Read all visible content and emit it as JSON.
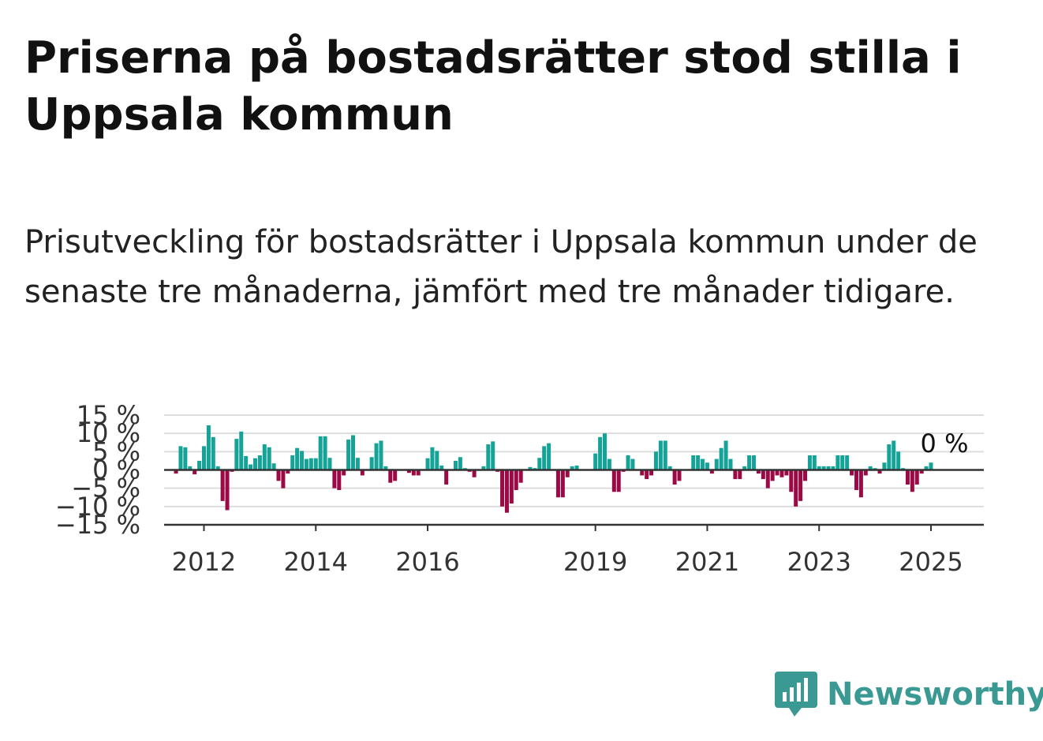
{
  "header": {
    "title": "Priserna på bostadsrätter stod stilla i Uppsala kommun",
    "subtitle": "Prisutveckling för bostadsrätter i Uppsala kommun under de senaste tre månaderna, jämfört med tre månader tidigare."
  },
  "branding": {
    "logo_text": "Newsworthy",
    "logo_icon": "bar-chart-speech-bubble-icon",
    "color": "#3a9a93"
  },
  "colors": {
    "positive": "#14a396",
    "negative": "#9b0a45",
    "grid": "#dddddd",
    "axis": "#333333"
  },
  "chart_data": {
    "type": "bar",
    "title": "",
    "xlabel": "",
    "ylabel": "",
    "ylim": [
      -15,
      15
    ],
    "yticks": [
      15,
      10,
      5,
      0,
      -5,
      -10,
      -15
    ],
    "ytick_labels": [
      "15 %",
      "10 %",
      "5 %",
      "0 %",
      "−5 %",
      "−10 %",
      "−15 %"
    ],
    "grid": true,
    "x_start": "2011-07",
    "x_ticks": [
      {
        "label": "2012",
        "date": "2012-01"
      },
      {
        "label": "2014",
        "date": "2014-01"
      },
      {
        "label": "2016",
        "date": "2016-01"
      },
      {
        "label": "2019",
        "date": "2019-01"
      },
      {
        "label": "2021",
        "date": "2021-01"
      },
      {
        "label": "2023",
        "date": "2023-01"
      },
      {
        "label": "2025",
        "date": "2025-01"
      }
    ],
    "last_value_label": "0 %",
    "series": [
      {
        "values": [
          -1,
          6.5,
          6.2,
          1,
          -1.2,
          2.5,
          6.5,
          12.2,
          9,
          1,
          -8.5,
          -11,
          -0.5,
          8.5,
          10.5,
          3.8,
          1.5,
          3.2,
          4,
          7,
          6.2,
          1.8,
          -3,
          -5,
          -1,
          4,
          6,
          5.2,
          3,
          3.2,
          3.2,
          9.2,
          9.2,
          3.3,
          -5,
          -5.5,
          -1.5,
          8.3,
          9.5,
          3.3,
          -1.5,
          0.2,
          3.5,
          7.3,
          8,
          1,
          -3.5,
          -3,
          0,
          0,
          -0.8,
          -1.5,
          -1.5,
          0,
          3.2,
          6.2,
          5.2,
          1.2,
          -4,
          0,
          2.5,
          3.5,
          0.5,
          -0.5,
          -2,
          0,
          1,
          7,
          7.8,
          -0.5,
          -10,
          -11.7,
          -9.2,
          -5.5,
          -3.5,
          0,
          0.8,
          0.5,
          3.3,
          6.5,
          7.3,
          0,
          -7.5,
          -7.5,
          -2,
          1,
          1.2,
          0,
          0,
          0,
          4.5,
          9,
          10,
          3,
          -6,
          -6,
          -0.5,
          4,
          3,
          0,
          -1.5,
          -2.5,
          -1.5,
          5,
          8,
          8,
          1,
          -4,
          -3,
          0,
          0,
          4,
          4,
          3,
          2,
          -1,
          3,
          6,
          8,
          3,
          -2.5,
          -2.5,
          1,
          4,
          4,
          -1,
          -2.5,
          -5,
          -3,
          -1.5,
          -2,
          -1.5,
          -6,
          -10,
          -8.5,
          -3,
          4,
          4,
          1,
          1,
          1,
          1,
          4,
          4,
          4,
          -1.5,
          -5.5,
          -7.5,
          -1.5,
          1,
          0.5,
          -1,
          2,
          7,
          8,
          5,
          0.5,
          -4,
          -6,
          -4,
          -1,
          1,
          2,
          0
        ]
      }
    ]
  }
}
